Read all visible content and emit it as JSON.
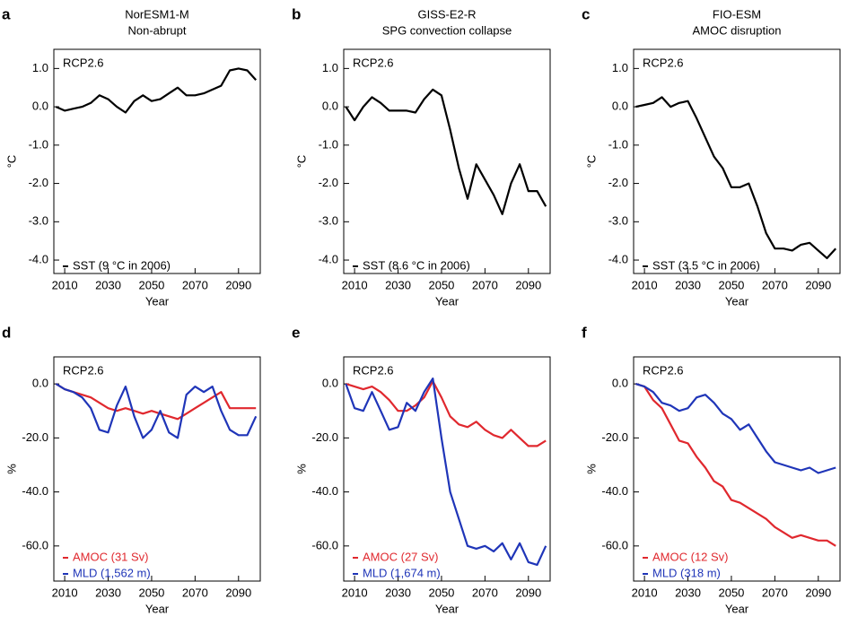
{
  "chart_data": [
    {
      "type": "line",
      "panel_label": "a",
      "title": "NorESM1-M",
      "subtitle": "Non-abrupt",
      "annotation": "RCP2.6",
      "xlabel": "Year",
      "ylabel": "°C",
      "legend": "lower left",
      "x": [
        2006,
        2010,
        2014,
        2018,
        2022,
        2026,
        2030,
        2034,
        2038,
        2042,
        2046,
        2050,
        2054,
        2058,
        2062,
        2066,
        2070,
        2074,
        2078,
        2082,
        2086,
        2090,
        2094,
        2098
      ],
      "series": [
        {
          "name": "SST (9 °C in 2006)",
          "color": "#000000",
          "values": [
            0.0,
            -0.1,
            -0.05,
            0.0,
            0.1,
            0.3,
            0.2,
            0.0,
            -0.15,
            0.15,
            0.3,
            0.15,
            0.2,
            0.35,
            0.5,
            0.3,
            0.3,
            0.35,
            0.45,
            0.55,
            0.95,
            1.0,
            0.95,
            0.7
          ]
        }
      ],
      "xlim": [
        2005,
        2100
      ],
      "xticks": [
        2010,
        2030,
        2050,
        2070,
        2090
      ],
      "ylim": [
        -4.35,
        1.5
      ],
      "yticks": [
        {
          "value": 1,
          "label": "1.0"
        },
        {
          "value": 0,
          "label": "0.0"
        },
        {
          "value": -1,
          "label": "-1.0"
        },
        {
          "value": -2,
          "label": "-2.0"
        },
        {
          "value": -3,
          "label": "-3.0"
        },
        {
          "value": -4,
          "label": "-4.0"
        }
      ]
    },
    {
      "type": "line",
      "panel_label": "b",
      "title": "GISS-E2-R",
      "subtitle": "SPG convection collapse",
      "annotation": "RCP2.6",
      "xlabel": "Year",
      "ylabel": "°C",
      "legend": "lower left",
      "x": [
        2006,
        2010,
        2014,
        2018,
        2022,
        2026,
        2030,
        2034,
        2038,
        2042,
        2046,
        2050,
        2054,
        2058,
        2062,
        2066,
        2070,
        2074,
        2078,
        2082,
        2086,
        2090,
        2094,
        2098
      ],
      "series": [
        {
          "name": "SST (8.6 °C in 2006)",
          "color": "#000000",
          "values": [
            0.0,
            -0.35,
            0.0,
            0.25,
            0.1,
            -0.1,
            -0.1,
            -0.1,
            -0.15,
            0.2,
            0.45,
            0.3,
            -0.6,
            -1.6,
            -2.4,
            -1.5,
            -1.9,
            -2.3,
            -2.8,
            -2.0,
            -1.5,
            -2.2,
            -2.2,
            -2.6
          ]
        }
      ],
      "xlim": [
        2005,
        2100
      ],
      "xticks": [
        2010,
        2030,
        2050,
        2070,
        2090
      ],
      "ylim": [
        -4.35,
        1.5
      ],
      "yticks": [
        {
          "value": 1,
          "label": "1.0"
        },
        {
          "value": 0,
          "label": "0.0"
        },
        {
          "value": -1,
          "label": "-1.0"
        },
        {
          "value": -2,
          "label": "-2.0"
        },
        {
          "value": -3,
          "label": "-3.0"
        },
        {
          "value": -4,
          "label": "-4.0"
        }
      ]
    },
    {
      "type": "line",
      "panel_label": "c",
      "title": "FIO-ESM",
      "subtitle": "AMOC disruption",
      "annotation": "RCP2.6",
      "xlabel": "Year",
      "ylabel": "°C",
      "legend": "lower left",
      "x": [
        2006,
        2010,
        2014,
        2018,
        2022,
        2026,
        2030,
        2034,
        2038,
        2042,
        2046,
        2050,
        2054,
        2058,
        2062,
        2066,
        2070,
        2074,
        2078,
        2082,
        2086,
        2090,
        2094,
        2098
      ],
      "series": [
        {
          "name": "SST (3.5 °C in 2006)",
          "color": "#000000",
          "values": [
            0.0,
            0.05,
            0.1,
            0.25,
            0.0,
            0.1,
            0.15,
            -0.3,
            -0.8,
            -1.3,
            -1.6,
            -2.1,
            -2.1,
            -2.0,
            -2.6,
            -3.3,
            -3.7,
            -3.7,
            -3.75,
            -3.6,
            -3.55,
            -3.75,
            -3.95,
            -3.7
          ]
        }
      ],
      "xlim": [
        2005,
        2100
      ],
      "xticks": [
        2010,
        2030,
        2050,
        2070,
        2090
      ],
      "ylim": [
        -4.35,
        1.5
      ],
      "yticks": [
        {
          "value": 1,
          "label": "1.0"
        },
        {
          "value": 0,
          "label": "0.0"
        },
        {
          "value": -1,
          "label": "-1.0"
        },
        {
          "value": -2,
          "label": "-2.0"
        },
        {
          "value": -3,
          "label": "-3.0"
        },
        {
          "value": -4,
          "label": "-4.0"
        }
      ]
    },
    {
      "type": "line",
      "panel_label": "d",
      "annotation": "RCP2.6",
      "xlabel": "Year",
      "ylabel": "%",
      "legend": "lower left",
      "x": [
        2006,
        2010,
        2014,
        2018,
        2022,
        2026,
        2030,
        2034,
        2038,
        2042,
        2046,
        2050,
        2054,
        2058,
        2062,
        2066,
        2070,
        2074,
        2078,
        2082,
        2086,
        2090,
        2094,
        2098
      ],
      "series": [
        {
          "name": "AMOC (31 Sv)",
          "color": "#e0282e",
          "values": [
            0,
            -2,
            -3,
            -4,
            -5,
            -7,
            -9,
            -10,
            -9,
            -10,
            -11,
            -10,
            -11,
            -12,
            -13,
            -11,
            -9,
            -7,
            -5,
            -3,
            -9,
            -9,
            -9,
            -9
          ]
        },
        {
          "name": "MLD (1,562 m)",
          "color": "#1f35b8",
          "values": [
            0,
            -2,
            -3,
            -5,
            -9,
            -17,
            -18,
            -8,
            -1,
            -12,
            -20,
            -17,
            -10,
            -18,
            -20,
            -4,
            -1,
            -3,
            -1,
            -10,
            -17,
            -19,
            -19,
            -12
          ]
        }
      ],
      "xlim": [
        2005,
        2100
      ],
      "xticks": [
        2010,
        2030,
        2050,
        2070,
        2090
      ],
      "ylim": [
        -73,
        10
      ],
      "yticks": [
        {
          "value": 0,
          "label": "0.0"
        },
        {
          "value": -20,
          "label": "-20.0"
        },
        {
          "value": -40,
          "label": "-40.0"
        },
        {
          "value": -60,
          "label": "-60.0"
        }
      ]
    },
    {
      "type": "line",
      "panel_label": "e",
      "annotation": "RCP2.6",
      "xlabel": "Year",
      "ylabel": "%",
      "legend": "lower left",
      "x": [
        2006,
        2010,
        2014,
        2018,
        2022,
        2026,
        2030,
        2034,
        2038,
        2042,
        2046,
        2050,
        2054,
        2058,
        2062,
        2066,
        2070,
        2074,
        2078,
        2082,
        2086,
        2090,
        2094,
        2098
      ],
      "series": [
        {
          "name": "AMOC (27 Sv)",
          "color": "#e0282e",
          "values": [
            0,
            -1,
            -2,
            -1,
            -3,
            -6,
            -10,
            -10,
            -8,
            -5,
            1,
            -5,
            -12,
            -15,
            -16,
            -14,
            -17,
            -19,
            -20,
            -17,
            -20,
            -23,
            -23,
            -21
          ]
        },
        {
          "name": "MLD (1,674 m)",
          "color": "#1f35b8",
          "values": [
            0,
            -9,
            -10,
            -3,
            -10,
            -17,
            -16,
            -7,
            -10,
            -3,
            2,
            -20,
            -40,
            -50,
            -60,
            -61,
            -60,
            -62,
            -59,
            -65,
            -59,
            -66,
            -67,
            -60
          ]
        }
      ],
      "xlim": [
        2005,
        2100
      ],
      "xticks": [
        2010,
        2030,
        2050,
        2070,
        2090
      ],
      "ylim": [
        -73,
        10
      ],
      "yticks": [
        {
          "value": 0,
          "label": "0.0"
        },
        {
          "value": -20,
          "label": "-20.0"
        },
        {
          "value": -40,
          "label": "-40.0"
        },
        {
          "value": -60,
          "label": "-60.0"
        }
      ]
    },
    {
      "type": "line",
      "panel_label": "f",
      "annotation": "RCP2.6",
      "xlabel": "Year",
      "ylabel": "%",
      "legend": "lower left",
      "x": [
        2006,
        2010,
        2014,
        2018,
        2022,
        2026,
        2030,
        2034,
        2038,
        2042,
        2046,
        2050,
        2054,
        2058,
        2062,
        2066,
        2070,
        2074,
        2078,
        2082,
        2086,
        2090,
        2094,
        2098
      ],
      "series": [
        {
          "name": "AMOC (12 Sv)",
          "color": "#e0282e",
          "values": [
            0,
            -1,
            -6,
            -9,
            -15,
            -21,
            -22,
            -27,
            -31,
            -36,
            -38,
            -43,
            -44,
            -46,
            -48,
            -50,
            -53,
            -55,
            -57,
            -56,
            -57,
            -58,
            -58,
            -60
          ]
        },
        {
          "name": "MLD (318 m)",
          "color": "#1f35b8",
          "values": [
            0,
            -1,
            -3,
            -7,
            -8,
            -10,
            -9,
            -5,
            -4,
            -7,
            -11,
            -13,
            -17,
            -15,
            -20,
            -25,
            -29,
            -30,
            -31,
            -32,
            -31,
            -33,
            -32,
            -31
          ]
        }
      ],
      "xlim": [
        2005,
        2100
      ],
      "xticks": [
        2010,
        2030,
        2050,
        2070,
        2090
      ],
      "ylim": [
        -73,
        10
      ],
      "yticks": [
        {
          "value": 0,
          "label": "0.0"
        },
        {
          "value": -20,
          "label": "-20.0"
        },
        {
          "value": -40,
          "label": "-40.0"
        },
        {
          "value": -60,
          "label": "-60.0"
        }
      ]
    }
  ]
}
